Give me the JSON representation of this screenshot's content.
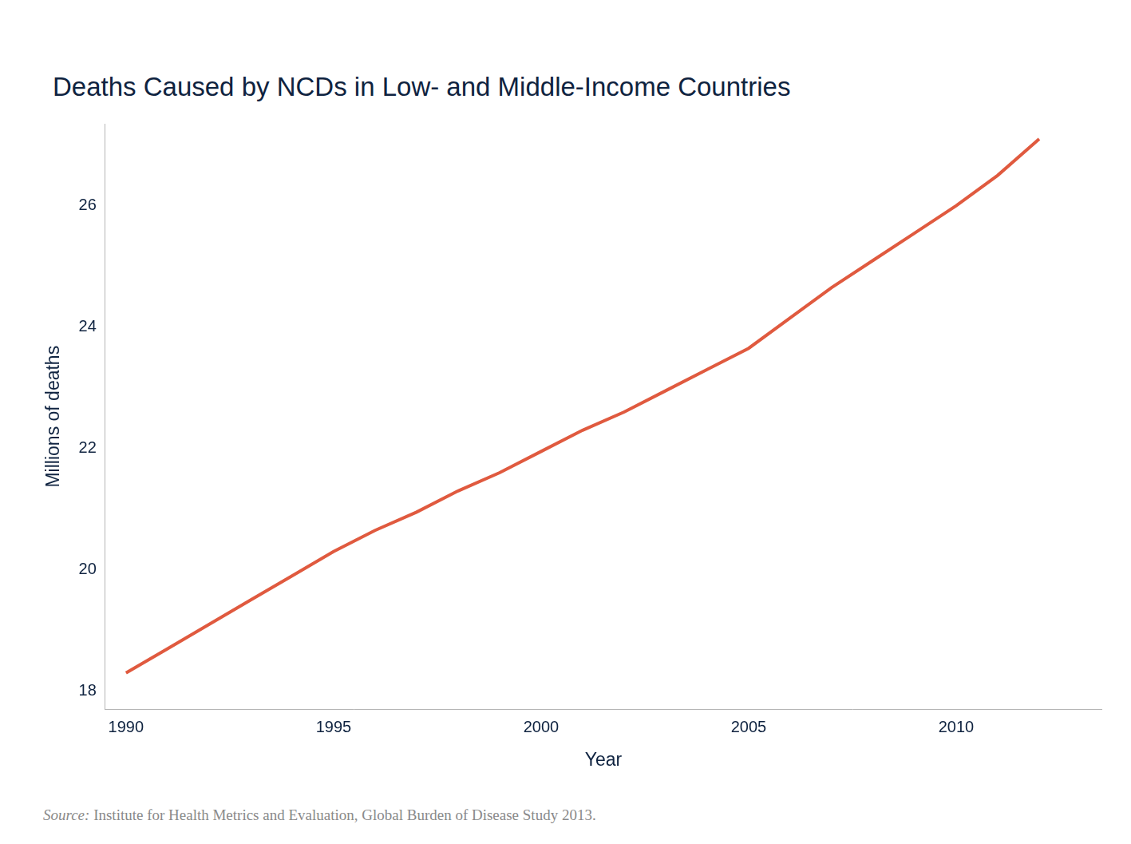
{
  "chart_data": {
    "type": "line",
    "title": "Deaths Caused by NCDs in Low- and Middle-Income Countries",
    "x_label": "Year",
    "y_label": "Millions of deaths",
    "x": [
      1990,
      1991,
      1992,
      1993,
      1994,
      1995,
      1996,
      1997,
      1998,
      1999,
      2000,
      2001,
      2002,
      2003,
      2004,
      2005,
      2006,
      2007,
      2008,
      2009,
      2010,
      2011,
      2012
    ],
    "values": [
      18.3,
      18.7,
      19.1,
      19.5,
      19.9,
      20.3,
      20.65,
      20.95,
      21.3,
      21.6,
      21.95,
      22.3,
      22.6,
      22.95,
      23.3,
      23.65,
      24.15,
      24.65,
      25.1,
      25.55,
      26.0,
      26.5,
      27.1
    ],
    "color": "#e05a3f",
    "xlim": [
      1989.5,
      2013.5
    ],
    "xticks": [
      1990,
      1995,
      2000,
      2005,
      2010
    ],
    "ylim": [
      17.7,
      27.35
    ],
    "yticks": [
      18,
      20,
      22,
      24,
      26
    ],
    "grid": false,
    "source_label": "Source:",
    "source": "Institute for Health Metrics and Evaluation, Global Burden of Disease Study 2013."
  }
}
